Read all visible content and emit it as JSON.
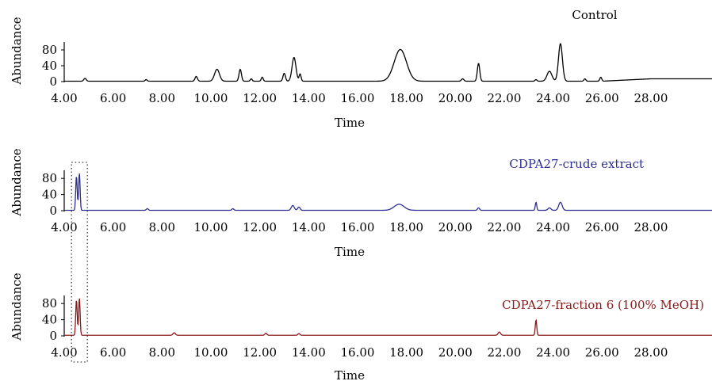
{
  "colors": {
    "axis": "#000000",
    "box": "#333333"
  },
  "chart_data": [
    {
      "type": "line",
      "title": "Control",
      "title_color": "#000000",
      "line_color": "#000000",
      "xlabel": "Time",
      "ylabel": "Abundance",
      "xlim": [
        4.0,
        30.5
      ],
      "ylim": [
        0,
        100
      ],
      "xticks": [
        "4.00",
        "6.00",
        "8.00",
        "10.00",
        "12.00",
        "14.00",
        "16.00",
        "18.00",
        "20.00",
        "22.00",
        "24.00",
        "26.00",
        "28.00"
      ],
      "yticks": [
        "0",
        "40",
        "80"
      ],
      "baseline": 1,
      "peaks": [
        {
          "t": 4.85,
          "h": 7,
          "w": 0.05
        },
        {
          "t": 7.35,
          "h": 4,
          "w": 0.04
        },
        {
          "t": 9.4,
          "h": 12,
          "w": 0.05
        },
        {
          "t": 10.25,
          "h": 30,
          "w": 0.1
        },
        {
          "t": 11.2,
          "h": 30,
          "w": 0.05
        },
        {
          "t": 11.65,
          "h": 6,
          "w": 0.04
        },
        {
          "t": 12.1,
          "h": 10,
          "w": 0.04
        },
        {
          "t": 13.0,
          "h": 20,
          "w": 0.05
        },
        {
          "t": 13.4,
          "h": 60,
          "w": 0.08
        },
        {
          "t": 13.65,
          "h": 18,
          "w": 0.04
        },
        {
          "t": 17.75,
          "h": 80,
          "w": 0.25
        },
        {
          "t": 20.3,
          "h": 6,
          "w": 0.05
        },
        {
          "t": 20.95,
          "h": 45,
          "w": 0.05
        },
        {
          "t": 23.3,
          "h": 4,
          "w": 0.04
        },
        {
          "t": 23.85,
          "h": 25,
          "w": 0.1
        },
        {
          "t": 24.3,
          "h": 95,
          "w": 0.08
        },
        {
          "t": 25.3,
          "h": 6,
          "w": 0.04
        },
        {
          "t": 25.95,
          "h": 10,
          "w": 0.04
        }
      ]
    },
    {
      "type": "line",
      "title": "CDPA27-crude extract",
      "title_color": "#2e3092",
      "line_color": "#2e3092",
      "xlabel": "Time",
      "ylabel": "Abundance",
      "xlim": [
        4.0,
        30.5
      ],
      "ylim": [
        0,
        100
      ],
      "xticks": [
        "4.00",
        "6.00",
        "8.00",
        "10.00",
        "12.00",
        "14.00",
        "16.00",
        "18.00",
        "20.00",
        "22.00",
        "24.00",
        "26.00",
        "28.00"
      ],
      "yticks": [
        "0",
        "40",
        "80"
      ],
      "baseline": 1,
      "peaks": [
        {
          "t": 4.5,
          "h": 85,
          "w": 0.03
        },
        {
          "t": 4.62,
          "h": 92,
          "w": 0.03
        },
        {
          "t": 7.4,
          "h": 4,
          "w": 0.04
        },
        {
          "t": 10.9,
          "h": 4,
          "w": 0.04
        },
        {
          "t": 13.35,
          "h": 12,
          "w": 0.06
        },
        {
          "t": 13.6,
          "h": 8,
          "w": 0.05
        },
        {
          "t": 17.7,
          "h": 15,
          "w": 0.2
        },
        {
          "t": 20.95,
          "h": 6,
          "w": 0.04
        },
        {
          "t": 23.3,
          "h": 20,
          "w": 0.03
        },
        {
          "t": 23.85,
          "h": 6,
          "w": 0.06
        },
        {
          "t": 24.3,
          "h": 20,
          "w": 0.07
        }
      ]
    },
    {
      "type": "line",
      "title": "CDPA27-fraction 6 (100% MeOH)",
      "title_color": "#8b1a1a",
      "line_color": "#8b1a1a",
      "xlabel": "Time",
      "ylabel": "Abundance",
      "xlim": [
        4.0,
        30.5
      ],
      "ylim": [
        0,
        100
      ],
      "xticks": [
        "4.00",
        "6.00",
        "8.00",
        "10.00",
        "12.00",
        "14.00",
        "16.00",
        "18.00",
        "20.00",
        "22.00",
        "24.00",
        "26.00",
        "28.00"
      ],
      "yticks": [
        "0",
        "40",
        "80"
      ],
      "baseline": 1.5,
      "peaks": [
        {
          "t": 4.5,
          "h": 88,
          "w": 0.03
        },
        {
          "t": 4.62,
          "h": 92,
          "w": 0.03
        },
        {
          "t": 8.5,
          "h": 6,
          "w": 0.05
        },
        {
          "t": 12.25,
          "h": 5,
          "w": 0.04
        },
        {
          "t": 13.6,
          "h": 4,
          "w": 0.04
        },
        {
          "t": 21.8,
          "h": 8,
          "w": 0.05
        },
        {
          "t": 23.3,
          "h": 38,
          "w": 0.03
        }
      ]
    }
  ]
}
